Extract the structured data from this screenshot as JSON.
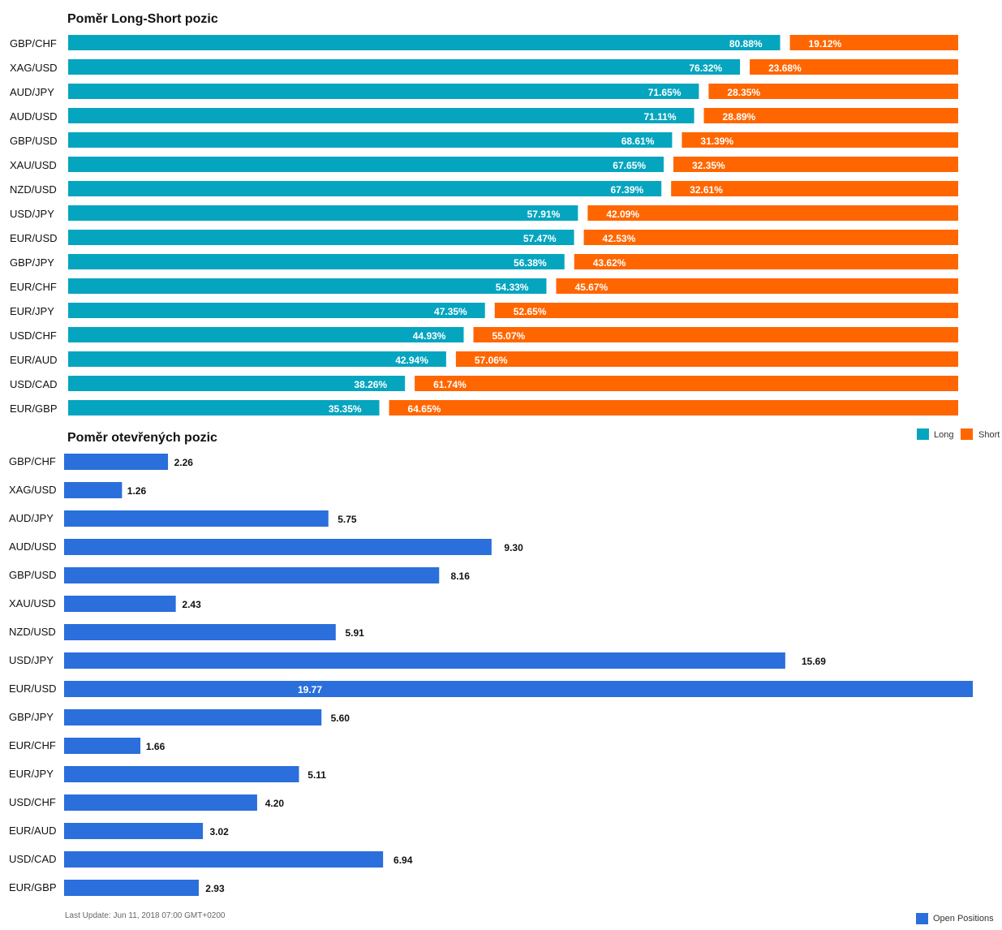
{
  "colors": {
    "long": "#06a5bf",
    "short": "#ff6600",
    "open": "#2a6fdb",
    "text": "#111111",
    "footer_text": "#666666",
    "background": "#ffffff"
  },
  "footer": {
    "last_update": "Last Update: Jun 11, 2018 07:00 GMT+0200"
  },
  "chart_data": [
    {
      "type": "bar",
      "orientation": "horizontal",
      "stacked": true,
      "title": "Poměr Long-Short pozic",
      "categories": [
        "GBP/CHF",
        "XAG/USD",
        "AUD/JPY",
        "AUD/USD",
        "GBP/USD",
        "XAU/USD",
        "NZD/USD",
        "USD/JPY",
        "EUR/USD",
        "GBP/JPY",
        "EUR/CHF",
        "EUR/JPY",
        "USD/CHF",
        "EUR/AUD",
        "USD/CAD",
        "EUR/GBP"
      ],
      "series": [
        {
          "name": "Long",
          "color": "#06a5bf",
          "values": [
            80.88,
            76.32,
            71.65,
            71.11,
            68.61,
            67.65,
            67.39,
            57.91,
            57.47,
            56.38,
            54.33,
            47.35,
            44.93,
            42.94,
            38.26,
            35.35
          ]
        },
        {
          "name": "Short",
          "color": "#ff6600",
          "values": [
            19.12,
            23.68,
            28.35,
            28.89,
            31.39,
            32.35,
            32.61,
            42.09,
            42.53,
            43.62,
            45.67,
            52.65,
            55.07,
            57.06,
            61.74,
            64.65
          ]
        }
      ],
      "value_suffix": "%",
      "xlim": [
        0,
        100
      ],
      "grid": false,
      "legend": "bottom-right"
    },
    {
      "type": "bar",
      "orientation": "horizontal",
      "title": "Poměr otevřených pozic",
      "categories": [
        "GBP/CHF",
        "XAG/USD",
        "AUD/JPY",
        "AUD/USD",
        "GBP/USD",
        "XAU/USD",
        "NZD/USD",
        "USD/JPY",
        "EUR/USD",
        "GBP/JPY",
        "EUR/CHF",
        "EUR/JPY",
        "USD/CHF",
        "EUR/AUD",
        "USD/CAD",
        "EUR/GBP"
      ],
      "series": [
        {
          "name": "Open Positions",
          "color": "#2a6fdb",
          "values": [
            2.26,
            1.26,
            5.75,
            9.3,
            8.16,
            2.43,
            5.91,
            15.69,
            19.77,
            5.6,
            1.66,
            5.11,
            4.2,
            3.02,
            6.94,
            2.93
          ]
        }
      ],
      "xlim": [
        0,
        19.77
      ],
      "grid": false,
      "legend": "bottom-right"
    }
  ]
}
